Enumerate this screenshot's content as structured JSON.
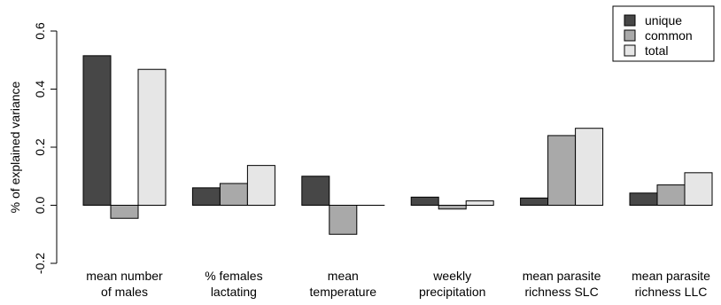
{
  "chart_data": {
    "type": "bar",
    "ylabel": "% of explained variance",
    "ylim": [
      -0.2,
      0.6
    ],
    "yticks": [
      -0.2,
      0.0,
      0.2,
      0.4,
      0.6
    ],
    "ytick_labels": [
      "-0.2",
      "0.0",
      "0.2",
      "0.4",
      "0.6"
    ],
    "categories": [
      [
        "mean number",
        "of males"
      ],
      [
        "% females",
        "lactating"
      ],
      [
        "mean",
        "temperature"
      ],
      [
        "weekly",
        "precipitation"
      ],
      [
        "mean parasite",
        "richness SLC"
      ],
      [
        "mean parasite",
        "richness LLC"
      ]
    ],
    "series": [
      {
        "name": "unique",
        "color": "#474747",
        "values": [
          0.515,
          0.06,
          0.1,
          0.028,
          0.025,
          0.042
        ]
      },
      {
        "name": "common",
        "color": "#a9a9a9",
        "values": [
          -0.045,
          0.075,
          -0.1,
          -0.013,
          0.24,
          0.07
        ]
      },
      {
        "name": "total",
        "color": "#e6e6e6",
        "values": [
          0.468,
          0.137,
          0.0,
          0.015,
          0.265,
          0.112
        ]
      }
    ],
    "legend_position": "top-right",
    "grid": false
  }
}
